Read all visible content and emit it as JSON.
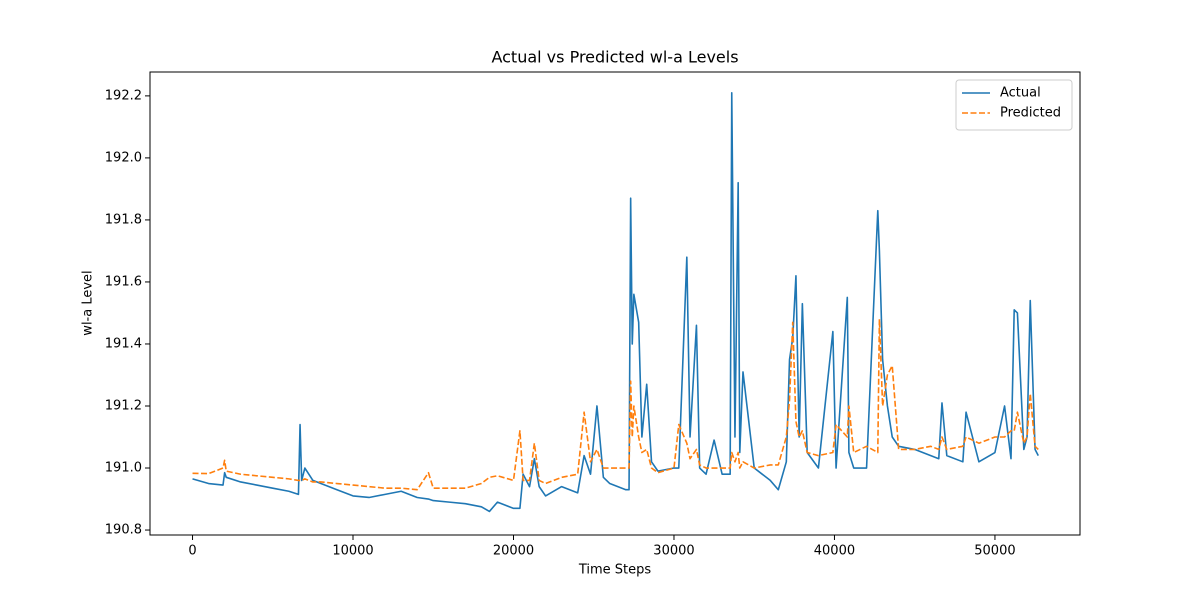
{
  "chart_data": {
    "type": "line",
    "title": "Actual vs Predicted wl-a Levels",
    "x_label": "Time Steps",
    "y_label": "wl-a Level",
    "x": [
      0,
      1000,
      1900,
      2000,
      2100,
      3000,
      4000,
      5000,
      6000,
      6600,
      6700,
      6800,
      7000,
      7500,
      8000,
      9000,
      10000,
      11000,
      12000,
      13000,
      14000,
      14700,
      15000,
      16000,
      17000,
      18000,
      18500,
      19000,
      20000,
      20400,
      20600,
      21000,
      21300,
      21600,
      22000,
      23000,
      24000,
      24400,
      24800,
      25200,
      25600,
      26000,
      27000,
      27200,
      27300,
      27400,
      27500,
      27800,
      28000,
      28300,
      28600,
      29000,
      30000,
      30300,
      30800,
      31000,
      31400,
      31600,
      32000,
      32500,
      33000,
      33500,
      33600,
      33800,
      34000,
      34100,
      34300,
      35000,
      36000,
      36500,
      37000,
      37200,
      37400,
      37600,
      37800,
      38000,
      38300,
      39000,
      39900,
      40100,
      40800,
      40900,
      41200,
      42000,
      42700,
      42800,
      43000,
      43300,
      43600,
      44000,
      45000,
      46000,
      46500,
      46700,
      47000,
      48000,
      48200,
      49000,
      50000,
      50600,
      51000,
      51200,
      51400,
      51800,
      52000,
      52200,
      52500,
      52700
    ],
    "series": [
      {
        "name": "Actual",
        "color": "#1f77b4",
        "linestyle": "solid",
        "values": [
          190.965,
          190.95,
          190.945,
          190.985,
          190.97,
          190.955,
          190.945,
          190.935,
          190.925,
          190.915,
          191.14,
          190.96,
          191.0,
          190.96,
          190.95,
          190.93,
          190.91,
          190.905,
          190.915,
          190.925,
          190.905,
          190.9,
          190.895,
          190.89,
          190.885,
          190.875,
          190.86,
          190.89,
          190.87,
          190.87,
          190.98,
          190.94,
          191.03,
          190.94,
          190.91,
          190.94,
          190.92,
          191.04,
          190.98,
          191.2,
          190.97,
          190.95,
          190.93,
          190.93,
          191.87,
          191.4,
          191.56,
          191.47,
          191.1,
          191.27,
          191.02,
          190.99,
          191.0,
          191.0,
          191.68,
          191.1,
          191.46,
          191.0,
          190.98,
          191.09,
          190.98,
          190.98,
          192.21,
          191.1,
          191.92,
          191.05,
          191.31,
          191.0,
          190.96,
          190.93,
          191.02,
          191.35,
          191.42,
          191.62,
          191.1,
          191.53,
          191.05,
          191.0,
          191.44,
          191.0,
          191.55,
          191.05,
          191.0,
          191.0,
          191.83,
          191.7,
          191.35,
          191.2,
          191.1,
          191.07,
          191.06,
          191.04,
          191.03,
          191.21,
          191.04,
          191.02,
          191.18,
          191.02,
          191.05,
          191.2,
          191.03,
          191.51,
          191.5,
          191.06,
          191.1,
          191.54,
          191.06,
          191.04
        ]
      },
      {
        "name": "Predicted",
        "color": "#ff7f0e",
        "linestyle": "dashed",
        "values": [
          190.983,
          190.982,
          191.0,
          191.025,
          190.99,
          190.98,
          190.975,
          190.97,
          190.965,
          190.96,
          190.96,
          190.96,
          190.965,
          190.955,
          190.955,
          190.95,
          190.945,
          190.94,
          190.935,
          190.935,
          190.93,
          190.985,
          190.935,
          190.935,
          190.935,
          190.95,
          190.97,
          190.975,
          190.96,
          191.12,
          190.96,
          190.96,
          191.08,
          190.96,
          190.95,
          190.97,
          190.98,
          191.18,
          191.02,
          191.06,
          191.0,
          191.0,
          191.0,
          191.0,
          191.28,
          191.1,
          191.2,
          191.1,
          191.05,
          191.06,
          191.0,
          190.985,
          191.0,
          191.14,
          191.08,
          191.03,
          191.06,
          191.01,
          191.0,
          191.0,
          191.0,
          191.0,
          191.05,
          191.02,
          191.05,
          191.0,
          191.02,
          191.0,
          191.01,
          191.01,
          191.1,
          191.22,
          191.47,
          191.15,
          191.1,
          191.12,
          191.05,
          191.04,
          191.05,
          191.14,
          191.1,
          191.2,
          191.05,
          191.07,
          191.05,
          191.48,
          191.2,
          191.3,
          191.33,
          191.06,
          191.06,
          191.07,
          191.06,
          191.1,
          191.06,
          191.07,
          191.1,
          191.08,
          191.1,
          191.1,
          191.12,
          191.12,
          191.18,
          191.08,
          191.1,
          191.24,
          191.07,
          191.06
        ]
      }
    ],
    "xlim": [
      -2650,
      55300
    ],
    "ylim": [
      190.784,
      192.277
    ],
    "xticks": [
      0,
      10000,
      20000,
      30000,
      40000,
      50000
    ],
    "yticks": [
      190.8,
      {
        "value": 191,
        "label": "191.0"
      },
      191.2,
      191.4,
      191.6,
      191.8,
      {
        "value": 192,
        "label": "192.0"
      },
      192.2
    ],
    "legend": "upper right"
  }
}
